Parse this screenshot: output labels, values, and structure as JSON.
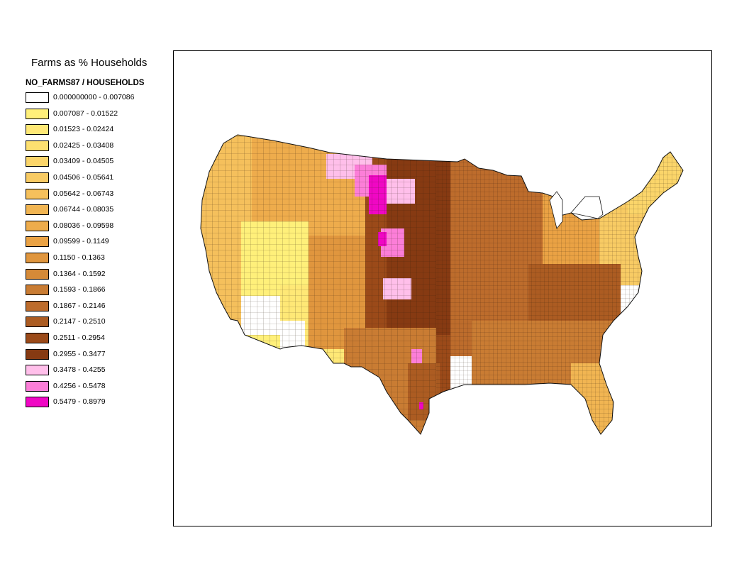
{
  "legend": {
    "title": "Farms as % Households",
    "field": "NO_FARMS87 / HOUSEHOLDS",
    "classes": [
      {
        "label": "0.000000000 - 0.007086",
        "color": "#ffffff"
      },
      {
        "label": "0.007087 - 0.01522",
        "color": "#fff07a"
      },
      {
        "label": "0.01523 - 0.02424",
        "color": "#ffe876"
      },
      {
        "label": "0.02425 - 0.03408",
        "color": "#fde070"
      },
      {
        "label": "0.03409 - 0.04505",
        "color": "#fbd56a"
      },
      {
        "label": "0.04506 - 0.05641",
        "color": "#f8cb64"
      },
      {
        "label": "0.05642 - 0.06743",
        "color": "#f5c05c"
      },
      {
        "label": "0.06744 - 0.08035",
        "color": "#f1b552"
      },
      {
        "label": "0.08036 - 0.09598",
        "color": "#eeac4c"
      },
      {
        "label": "0.09599 - 0.1149",
        "color": "#eaa244"
      },
      {
        "label": "0.1150 - 0.1363",
        "color": "#e0963e"
      },
      {
        "label": "0.1364 - 0.1592",
        "color": "#d58a38"
      },
      {
        "label": "0.1593 - 0.1866",
        "color": "#c97c33"
      },
      {
        "label": "0.1867 - 0.2146",
        "color": "#bd6c2c"
      },
      {
        "label": "0.2147 - 0.2510",
        "color": "#ac5c22"
      },
      {
        "label": "0.2511 - 0.2954",
        "color": "#9b4a19"
      },
      {
        "label": "0.2955 - 0.3477",
        "color": "#863a12"
      },
      {
        "label": "0.3478 - 0.4255",
        "color": "#ffbfea"
      },
      {
        "label": "0.4256 - 0.5478",
        "color": "#fc7ed8"
      },
      {
        "label": "0.5479 - 0.8979",
        "color": "#f007c4"
      }
    ]
  },
  "map": {
    "outline_color": "#222222",
    "region_colors": {
      "west_coast": "#f5c05c",
      "great_basin": "#fff07a",
      "southwest": "#ffe876",
      "mountain_north": "#eeac4c",
      "mountain_south": "#e0963e",
      "great_plains": "#9b4a19",
      "plains_core": "#863a12",
      "texas": "#c97c33",
      "texas_coast": "#ac5c22",
      "midwest": "#bd6c2c",
      "great_lakes": "#eaa244",
      "northeast": "#f8cb64",
      "new_england": "#fbd56a",
      "appalachia": "#ac5c22",
      "southeast": "#c97c33",
      "florida": "#f1b552",
      "pink_light": "#ffbfea",
      "pink_mid": "#fc7ed8",
      "pink_hot": "#f007c4",
      "white": "#ffffff"
    }
  }
}
